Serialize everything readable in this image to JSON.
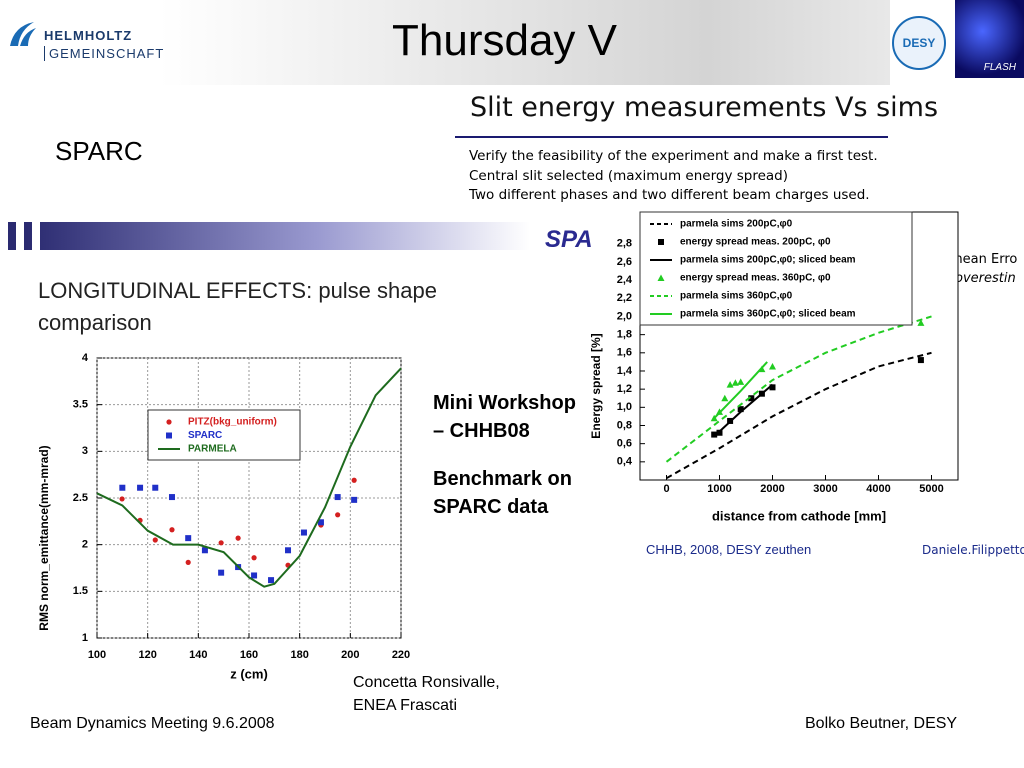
{
  "header": {
    "title": "Thursday V",
    "logo_left_1": "HELMHOLTZ",
    "logo_left_2": "GEMEINSCHAFT",
    "logo_desy": "DESY",
    "logo_flash": "FLASH"
  },
  "left": {
    "label": "SPARC",
    "banner": "SPA",
    "heading": "LONGITUDINAL EFFECTS: pulse shape comparison",
    "workshop_1": "Mini Workshop",
    "workshop_2": "– CHHB08",
    "benchmark_1": "Benchmark on",
    "benchmark_2": "SPARC data",
    "credit_1": "Concetta Ronsivalle,",
    "credit_2": "ENEA Frascati"
  },
  "right": {
    "heading": "Slit energy measurements Vs sims",
    "lines": [
      "Verify the feasibility of the experiment and make a first test.",
      "Central slit selected (maximum energy spread)",
      "Two different phases and two different beam charges used."
    ],
    "note_1": "mean Erro",
    "note_2": "overestin",
    "source": "CHHB, 2008, DESY zeuthen",
    "author": "Daniele.Filippetto"
  },
  "footer": {
    "left": "Beam Dynamics Meeting 9.6.2008",
    "right": "Bolko Beutner, DESY"
  },
  "chart_data": [
    {
      "type": "scatter",
      "x_label": "z (cm)",
      "y_label": "RMS norm_emittance(mm-mrad)",
      "xlim": [
        100,
        220
      ],
      "xticks": [
        100,
        120,
        140,
        160,
        180,
        200,
        220
      ],
      "ylim": [
        1,
        4
      ],
      "yticks": [
        1,
        1.5,
        2,
        2.5,
        3,
        3.5,
        4
      ],
      "grid": true,
      "series": [
        {
          "name": "PITZ(bkg_uniform)",
          "color": "#d42020",
          "marker": "circle",
          "x": [
            109.9,
            117,
            123,
            129.6,
            136,
            142.6,
            149,
            155.7,
            162,
            168.7,
            175.4,
            188.4,
            195,
            201.5
          ],
          "values": [
            2.49,
            2.26,
            2.05,
            2.16,
            1.81,
            1.96,
            2.02,
            2.07,
            1.86,
            1.62,
            1.78,
            2.21,
            2.32,
            2.69
          ]
        },
        {
          "name": "SPARC",
          "color": "#2030c8",
          "marker": "square",
          "x": [
            110,
            117,
            123,
            129.6,
            136,
            142.6,
            149,
            155.7,
            162,
            168.7,
            175.4,
            181.7,
            188.4,
            195,
            201.5
          ],
          "values": [
            2.61,
            2.61,
            2.61,
            2.51,
            2.07,
            1.94,
            1.7,
            1.76,
            1.67,
            1.62,
            1.94,
            2.13,
            2.24,
            2.51,
            2.48
          ]
        },
        {
          "name": "PARMELA",
          "color": "#1e6b1e",
          "marker": "none",
          "x": [
            100,
            110,
            120,
            130,
            140,
            150,
            160,
            166,
            170,
            180,
            190,
            200,
            210,
            220
          ],
          "values": [
            2.55,
            2.42,
            2.15,
            2.0,
            2.0,
            1.92,
            1.65,
            1.55,
            1.58,
            1.88,
            2.4,
            3.05,
            3.6,
            3.89
          ]
        }
      ]
    },
    {
      "type": "scatter",
      "x_label": "distance from cathode [mm]",
      "y_label": "Energy spread [%]",
      "xlim": [
        -500,
        5500
      ],
      "xticks": [
        0,
        1000,
        2000,
        3000,
        4000,
        5000
      ],
      "ylim": [
        0.2,
        3.15
      ],
      "yticks": [
        {
          "value": 0.4,
          "label": "0,4"
        },
        {
          "value": 0.6,
          "label": "0,6"
        },
        {
          "value": 0.8,
          "label": "0,8"
        },
        {
          "value": 1,
          "label": "1,0"
        },
        {
          "value": 1.2,
          "label": "1,2"
        },
        {
          "value": 1.4,
          "label": "1,4"
        },
        {
          "value": 1.6,
          "label": "1,6"
        },
        {
          "value": 1.8,
          "label": "1,8"
        },
        {
          "value": 2,
          "label": "2,0"
        },
        {
          "value": 2.2,
          "label": "2,2"
        },
        {
          "value": 2.4,
          "label": "2,4"
        },
        {
          "value": 2.6,
          "label": "2,6"
        },
        {
          "value": 2.8,
          "label": "2,8"
        }
      ],
      "grid": false,
      "series": [
        {
          "name": "parmela sims 200pC,φ0",
          "color": "#000000",
          "marker": "none",
          "dash": true,
          "x": [
            0,
            1000,
            2000,
            3000,
            4000,
            5000
          ],
          "values": [
            0.22,
            0.55,
            0.9,
            1.2,
            1.45,
            1.6
          ]
        },
        {
          "name": "energy spread meas. 200pC, φ0",
          "color": "#000000",
          "marker": "square",
          "x": [
            900,
            1000,
            1200,
            1400,
            1600,
            1800,
            2000,
            4800
          ],
          "values": [
            0.7,
            0.72,
            0.85,
            0.98,
            1.1,
            1.15,
            1.22,
            1.52
          ]
        },
        {
          "name": "parmela sims 200pC,φ0; sliced beam",
          "color": "#000000",
          "marker": "none",
          "x": [
            900,
            1400,
            2000
          ],
          "values": [
            0.68,
            0.95,
            1.25
          ]
        },
        {
          "name": "energy spread meas. 360pC, φ0",
          "color": "#22cc22",
          "marker": "triangle",
          "x": [
            900,
            1000,
            1100,
            1200,
            1300,
            1400,
            1800,
            2000,
            4800
          ],
          "values": [
            0.88,
            0.95,
            1.1,
            1.25,
            1.27,
            1.28,
            1.42,
            1.45,
            1.93
          ]
        },
        {
          "name": "parmela sims 360pC,φ0",
          "color": "#22cc22",
          "marker": "none",
          "dash": true,
          "x": [
            0,
            1000,
            2000,
            3000,
            4000,
            5000
          ],
          "values": [
            0.4,
            0.85,
            1.3,
            1.6,
            1.82,
            2.0
          ]
        },
        {
          "name": "parmela sims 360pC,φ0; sliced beam",
          "color": "#22cc22",
          "marker": "none",
          "x": [
            900,
            1400,
            1900
          ],
          "values": [
            0.88,
            1.18,
            1.5
          ]
        }
      ]
    }
  ]
}
